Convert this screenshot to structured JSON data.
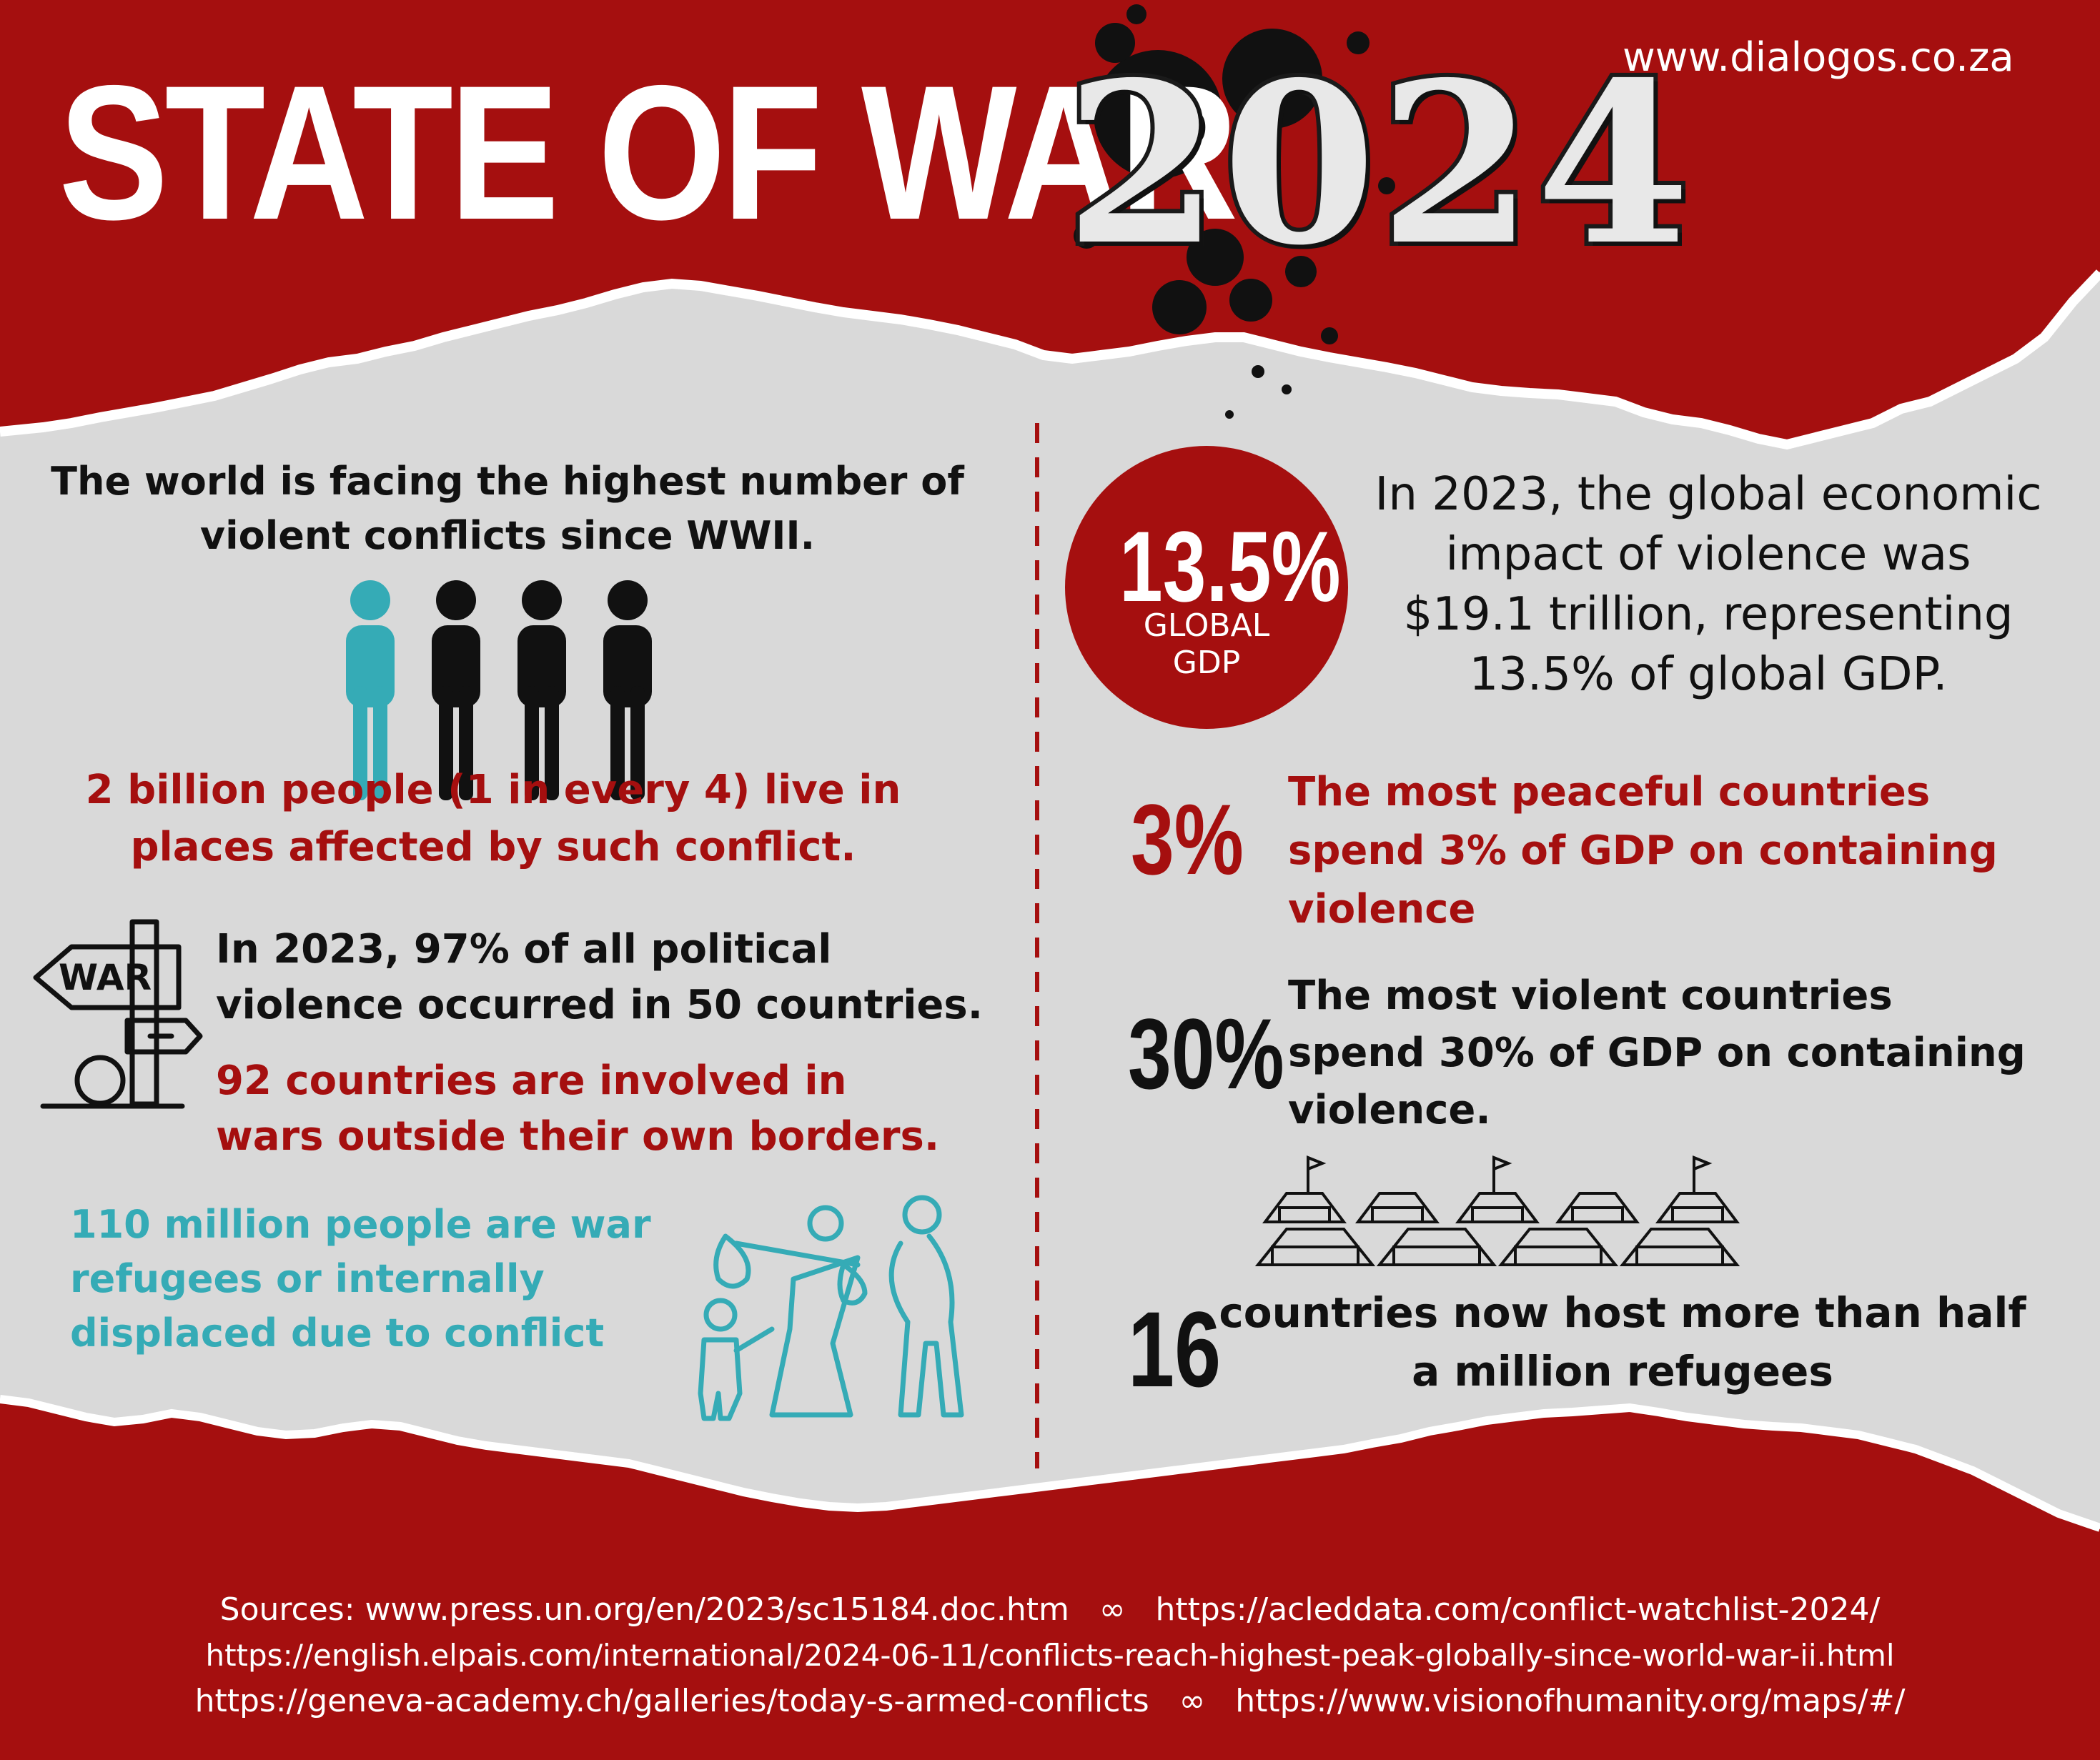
{
  "header": {
    "title": "STATE OF WAR",
    "year": "2024",
    "website": "www.dialogos.co.za"
  },
  "left": {
    "intro_line1": "The world is facing the highest number of",
    "intro_line2": "violent conflicts since WWII.",
    "people_line1": "2 billion people (1 in every 4) live in",
    "people_line2": "places affected by such conflict.",
    "sign_label": "WAR",
    "political_line1": "In 2023, 97% of all political",
    "political_line2": "violence occurred in 50 countries.",
    "countries_line1": "92 countries are involved in",
    "countries_line2": "wars outside their own borders.",
    "refugees_line1": "110 million people are war",
    "refugees_line2": "refugees or internally",
    "refugees_line3": "displaced due to conflict"
  },
  "right": {
    "gdp_stat": "13.5%",
    "gdp_label_line1": "GLOBAL",
    "gdp_label_line2": "GDP",
    "impact_line1": "In 2023, the global economic",
    "impact_line2": "impact of violence was",
    "impact_line3": "$19.1 trillion, representing",
    "impact_line4": "13.5% of global GDP.",
    "peaceful_stat": "3%",
    "peaceful_line1": "The most peaceful countries",
    "peaceful_line2": "spend 3% of GDP on containing",
    "peaceful_line3": "violence",
    "violent_stat": "30%",
    "violent_line1": "The most violent countries",
    "violent_line2": "spend 30% of GDP on containing",
    "violent_line3": "violence.",
    "host_stat": "16",
    "host_line1": "countries now host more than half",
    "host_line2": "a million refugees"
  },
  "sources": {
    "line1_part1": "Sources: www.press.un.org/en/2023/sc15184.doc.htm",
    "line1_separator": "∞",
    "line1_part2": "https://acleddata.com/conflict-watchlist-2024/",
    "line2": "https://english.elpais.com/international/2024-06-11/conflicts-reach-highest-peak-globally-since-world-war-ii.html",
    "line3_part1": "https://geneva-academy.ch/galleries/today-s-armed-conflicts",
    "line3_separator": "∞",
    "line3_part2": "https://www.visionofhumanity.org/maps/#/"
  },
  "icons": {
    "people_group": "person-icon",
    "war_sign": "war-signpost-icon",
    "refugee_family": "refugee-family-icon",
    "refugee_camp": "refugee-camp-tents-icon",
    "ink_splatter": "ink-splatter"
  },
  "colors": {
    "red": "#a50f0f",
    "teal": "#35abb6",
    "black": "#111111",
    "light_grey": "#d9d9d9",
    "white": "#ffffff"
  }
}
